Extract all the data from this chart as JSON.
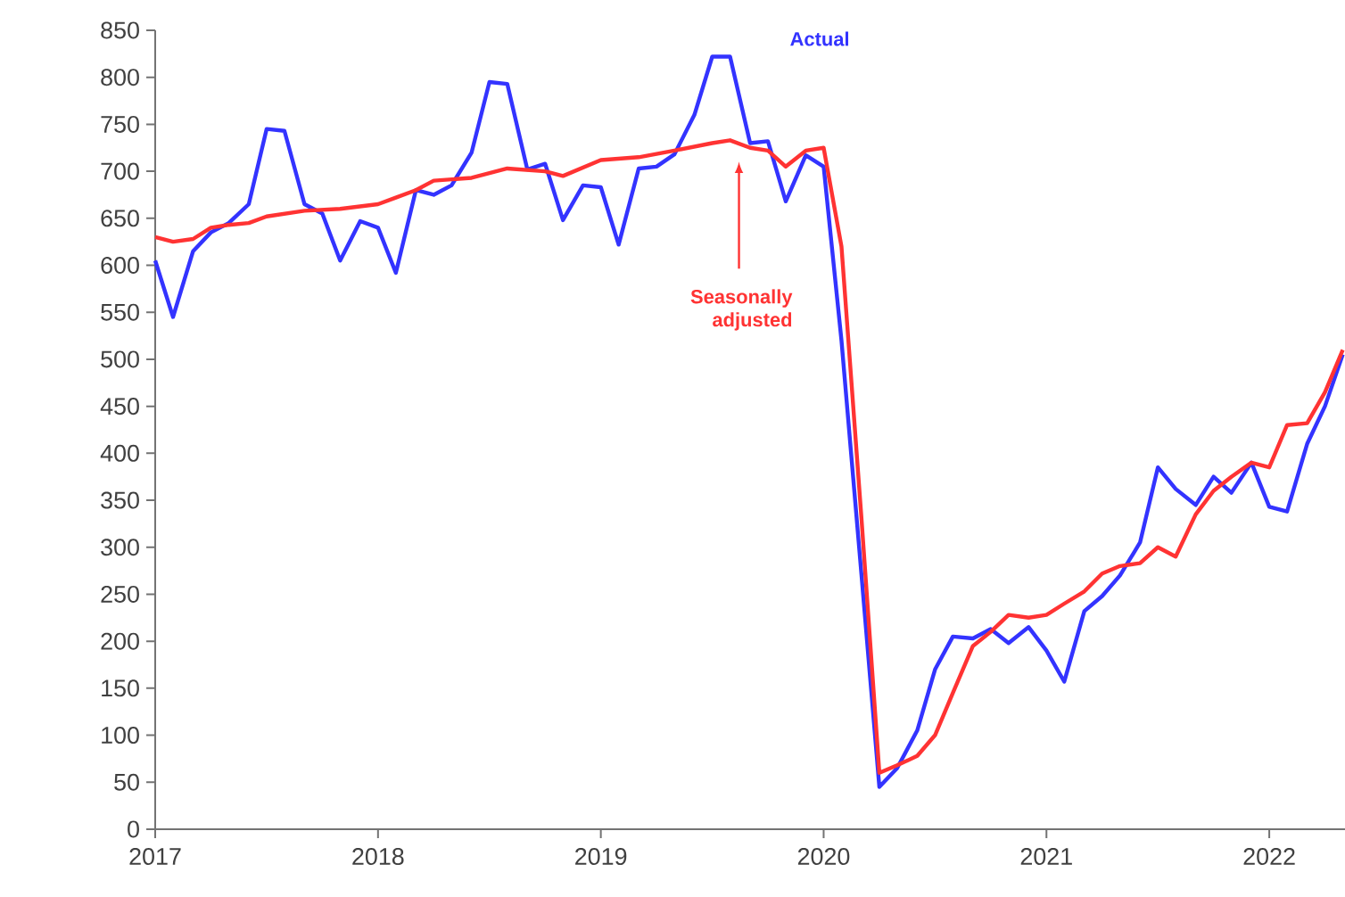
{
  "chart_data": {
    "type": "line",
    "xlim": [
      2017,
      2022.34
    ],
    "ylim": [
      0,
      850
    ],
    "xticks": [
      2017,
      2018,
      2019,
      2020,
      2021,
      2022
    ],
    "yticks": [
      0,
      50,
      100,
      150,
      200,
      250,
      300,
      350,
      400,
      450,
      500,
      550,
      600,
      650,
      700,
      750,
      800,
      850
    ],
    "grid": false,
    "legend": false,
    "marker": "none",
    "line_style": "solid",
    "series": [
      {
        "name": "Actual",
        "color": "#3333ff",
        "x": [
          2017.0,
          2017.08,
          2017.17,
          2017.25,
          2017.33,
          2017.42,
          2017.5,
          2017.58,
          2017.67,
          2017.75,
          2017.83,
          2017.92,
          2018.0,
          2018.08,
          2018.17,
          2018.25,
          2018.33,
          2018.42,
          2018.5,
          2018.58,
          2018.67,
          2018.75,
          2018.83,
          2018.92,
          2019.0,
          2019.08,
          2019.17,
          2019.25,
          2019.33,
          2019.42,
          2019.5,
          2019.58,
          2019.67,
          2019.75,
          2019.83,
          2019.92,
          2020.0,
          2020.08,
          2020.17,
          2020.25,
          2020.33,
          2020.42,
          2020.5,
          2020.58,
          2020.67,
          2020.75,
          2020.83,
          2020.92,
          2021.0,
          2021.08,
          2021.17,
          2021.25,
          2021.33,
          2021.42,
          2021.5,
          2021.58,
          2021.67,
          2021.75,
          2021.83,
          2021.92,
          2022.0,
          2022.08,
          2022.17,
          2022.25,
          2022.33
        ],
        "values": [
          605,
          545,
          615,
          635,
          645,
          665,
          745,
          743,
          665,
          655,
          605,
          647,
          640,
          592,
          680,
          675,
          685,
          720,
          795,
          793,
          702,
          708,
          648,
          685,
          683,
          622,
          703,
          705,
          718,
          760,
          822,
          822,
          730,
          732,
          668,
          717,
          705,
          520,
          270,
          45,
          65,
          105,
          170,
          205,
          203,
          213,
          198,
          215,
          190,
          157,
          232,
          248,
          270,
          305,
          385,
          362,
          345,
          375,
          358,
          390,
          343,
          338,
          410,
          450,
          505
        ]
      },
      {
        "name": "Seasonally adjusted",
        "color": "#ff3333",
        "x": [
          2017.0,
          2017.08,
          2017.17,
          2017.25,
          2017.33,
          2017.42,
          2017.5,
          2017.67,
          2017.83,
          2018.0,
          2018.08,
          2018.17,
          2018.25,
          2018.42,
          2018.58,
          2018.75,
          2018.83,
          2019.0,
          2019.17,
          2019.33,
          2019.5,
          2019.58,
          2019.67,
          2019.75,
          2019.83,
          2019.92,
          2020.0,
          2020.08,
          2020.17,
          2020.25,
          2020.33,
          2020.42,
          2020.5,
          2020.58,
          2020.67,
          2020.75,
          2020.83,
          2020.92,
          2021.0,
          2021.08,
          2021.17,
          2021.25,
          2021.33,
          2021.42,
          2021.5,
          2021.58,
          2021.67,
          2021.75,
          2021.83,
          2021.92,
          2022.0,
          2022.08,
          2022.17,
          2022.25,
          2022.33
        ],
        "values": [
          630,
          625,
          628,
          640,
          643,
          645,
          652,
          658,
          660,
          665,
          672,
          680,
          690,
          693,
          703,
          700,
          695,
          712,
          715,
          722,
          730,
          733,
          725,
          722,
          705,
          722,
          725,
          620,
          330,
          60,
          68,
          78,
          100,
          145,
          195,
          210,
          228,
          225,
          228,
          240,
          253,
          272,
          280,
          283,
          300,
          290,
          335,
          360,
          375,
          390,
          385,
          430,
          432,
          465,
          510
        ]
      }
    ]
  }
}
